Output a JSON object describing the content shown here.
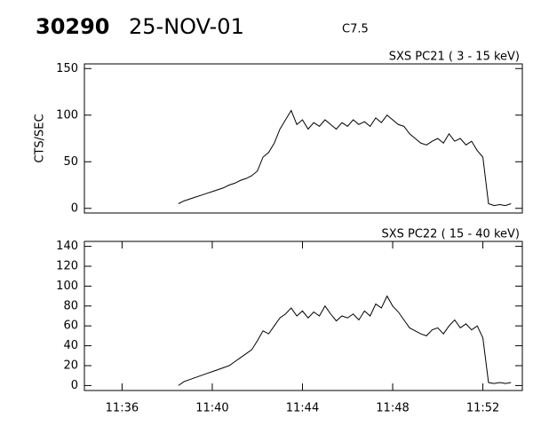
{
  "header": {
    "id": "30290",
    "date": "25-NOV-01",
    "class": "C7.5"
  },
  "chart_data": [
    {
      "type": "line",
      "title": "SXS PC21 ( 3 - 15 keV)",
      "y_label": "CTS/SEC",
      "color": "#000000",
      "x": [
        38.5,
        38.75,
        39,
        39.25,
        39.5,
        39.75,
        40,
        40.25,
        40.5,
        40.75,
        41,
        41.25,
        41.5,
        41.75,
        42,
        42.25,
        42.5,
        42.75,
        43,
        43.25,
        43.5,
        43.75,
        44,
        44.25,
        44.5,
        44.75,
        45,
        45.25,
        45.5,
        45.75,
        46,
        46.25,
        46.5,
        46.75,
        47,
        47.25,
        47.5,
        47.75,
        48,
        48.25,
        48.5,
        48.75,
        49,
        49.25,
        49.5,
        49.75,
        50,
        50.25,
        50.5,
        50.75,
        51,
        51.25,
        51.5,
        51.75,
        52,
        52.25,
        52.5,
        52.75,
        53,
        53.25
      ],
      "values": [
        5,
        8,
        10,
        12,
        14,
        16,
        18,
        20,
        22,
        25,
        27,
        30,
        32,
        35,
        40,
        55,
        60,
        70,
        85,
        95,
        105,
        90,
        95,
        85,
        92,
        88,
        95,
        90,
        85,
        92,
        88,
        95,
        90,
        93,
        88,
        97,
        92,
        100,
        95,
        90,
        88,
        80,
        75,
        70,
        68,
        72,
        75,
        70,
        80,
        72,
        75,
        68,
        72,
        62,
        55,
        5,
        3,
        4,
        3,
        5
      ],
      "xlim": [
        34.33,
        53.75
      ],
      "ylim": [
        -5,
        155
      ],
      "yticks": [
        0,
        50,
        100,
        150
      ]
    },
    {
      "type": "line",
      "title": "SXS PC22 ( 15 - 40 keV)",
      "color": "#000000",
      "x": [
        38.5,
        38.75,
        39,
        39.25,
        39.5,
        39.75,
        40,
        40.25,
        40.5,
        40.75,
        41,
        41.25,
        41.5,
        41.75,
        42,
        42.25,
        42.5,
        42.75,
        43,
        43.25,
        43.5,
        43.75,
        44,
        44.25,
        44.5,
        44.75,
        45,
        45.25,
        45.5,
        45.75,
        46,
        46.25,
        46.5,
        46.75,
        47,
        47.25,
        47.5,
        47.75,
        48,
        48.25,
        48.5,
        48.75,
        49,
        49.25,
        49.5,
        49.75,
        50,
        50.25,
        50.5,
        50.75,
        51,
        51.25,
        51.5,
        51.75,
        52,
        52.25,
        52.5,
        52.75,
        53,
        53.25
      ],
      "values": [
        0,
        4,
        6,
        8,
        10,
        12,
        14,
        16,
        18,
        20,
        24,
        28,
        32,
        36,
        45,
        55,
        52,
        60,
        68,
        72,
        78,
        70,
        75,
        68,
        74,
        70,
        80,
        72,
        65,
        70,
        68,
        72,
        66,
        75,
        70,
        82,
        78,
        90,
        80,
        74,
        66,
        58,
        55,
        52,
        50,
        56,
        58,
        52,
        60,
        66,
        58,
        62,
        56,
        60,
        48,
        3,
        2,
        3,
        2,
        3
      ],
      "xlim": [
        34.33,
        53.75
      ],
      "ylim": [
        -5,
        145
      ],
      "yticks": [
        0,
        20,
        40,
        60,
        80,
        100,
        120,
        140
      ],
      "xticks": [
        {
          "value": 36,
          "label": "11:36"
        },
        {
          "value": 40,
          "label": "11:40"
        },
        {
          "value": 44,
          "label": "11:44"
        },
        {
          "value": 48,
          "label": "11:48"
        },
        {
          "value": 52,
          "label": "11:52"
        }
      ]
    }
  ]
}
